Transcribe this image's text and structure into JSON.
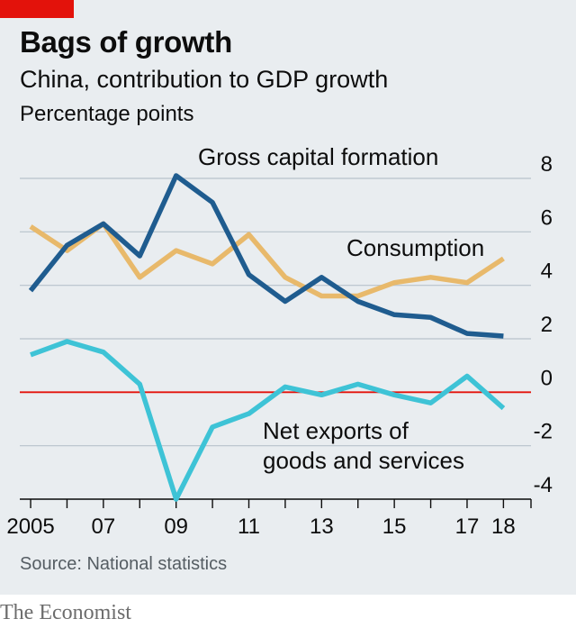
{
  "header": {
    "title": "Bags of growth",
    "subtitle": "China, contribution to GDP growth",
    "unit": "Percentage points"
  },
  "footer": {
    "source": "Source: National statistics",
    "brand": "The Economist"
  },
  "colors": {
    "gross_capital_formation": "#1f5c8f",
    "consumption": "#e8b96b",
    "net_exports": "#3ec3d6",
    "zero_line": "#e3120b",
    "grid": "#b7c3cb"
  },
  "chart_data": {
    "type": "line",
    "title": "Bags of growth",
    "subtitle": "China, contribution to GDP growth",
    "ylabel": "Percentage points",
    "x": [
      2005,
      2006,
      2007,
      2008,
      2009,
      2010,
      2011,
      2012,
      2013,
      2014,
      2015,
      2016,
      2017,
      2018
    ],
    "x_tick_labels": [
      {
        "x": 2005,
        "label": "2005"
      },
      {
        "x": 2007,
        "label": "07"
      },
      {
        "x": 2009,
        "label": "09"
      },
      {
        "x": 2011,
        "label": "11"
      },
      {
        "x": 2013,
        "label": "13"
      },
      {
        "x": 2015,
        "label": "15"
      },
      {
        "x": 2017,
        "label": "17"
      },
      {
        "x": 2018,
        "label": "18"
      }
    ],
    "y_ticks": [
      -4,
      -2,
      0,
      2,
      4,
      6,
      8
    ],
    "ylim": [
      -4,
      8
    ],
    "xlim": [
      2004.9,
      2019.5
    ],
    "grid": true,
    "series": [
      {
        "key": "consumption",
        "name": "Consumption",
        "values": [
          6.2,
          5.3,
          6.3,
          4.3,
          5.3,
          4.8,
          5.9,
          4.3,
          3.6,
          3.6,
          4.1,
          4.3,
          4.1,
          5.0
        ]
      },
      {
        "key": "gross_capital_formation",
        "name": "Gross capital formation",
        "values": [
          3.8,
          5.5,
          6.3,
          5.1,
          8.1,
          7.1,
          4.4,
          3.4,
          4.3,
          3.4,
          2.9,
          2.8,
          2.2,
          2.1
        ]
      },
      {
        "key": "net_exports",
        "name_lines": [
          "Net exports of",
          "goods and services"
        ],
        "values": [
          1.4,
          1.9,
          1.5,
          0.3,
          -4.0,
          -1.3,
          -0.8,
          0.2,
          -0.1,
          0.3,
          -0.1,
          -0.4,
          0.6,
          -0.6
        ]
      }
    ]
  }
}
